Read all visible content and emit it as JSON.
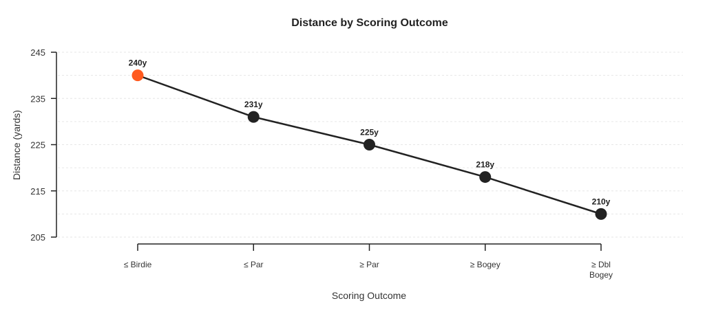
{
  "chart_data": {
    "type": "line",
    "title": "Distance by Scoring Outcome",
    "xlabel": "Scoring Outcome",
    "ylabel": "Distance (yards)",
    "categories": [
      [
        "≤ Birdie"
      ],
      [
        "≤ Par"
      ],
      [
        "≥ Par"
      ],
      [
        "≥ Bogey"
      ],
      [
        "≥ Dbl",
        "Bogey"
      ]
    ],
    "values": [
      240,
      231,
      225,
      218,
      210
    ],
    "data_labels": [
      "240y",
      "231y",
      "225y",
      "218y",
      "210y"
    ],
    "ylim": [
      205,
      245
    ],
    "yticks": [
      205,
      215,
      225,
      235,
      245
    ],
    "ytick_labels": [
      "205",
      "215",
      "225",
      "235",
      "245"
    ],
    "minor_gridlines": [
      210,
      220,
      230,
      240
    ],
    "highlight_index": 0,
    "colors": {
      "highlight": "#ff5a1f",
      "point": "#222222",
      "line": "#222222"
    }
  }
}
